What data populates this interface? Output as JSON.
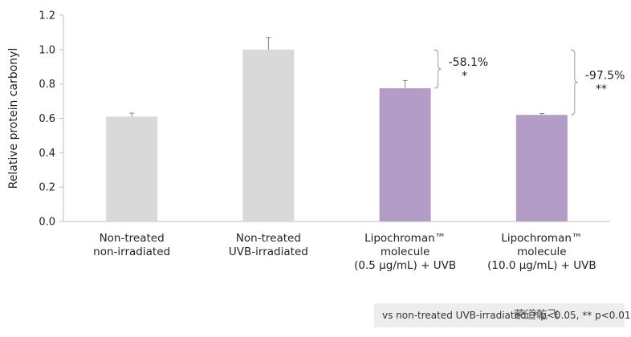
{
  "chart_data": {
    "type": "bar",
    "title": "",
    "xlabel": "",
    "ylabel": "Relative protein carbonyl",
    "ylim": [
      0,
      1.2
    ],
    "yticks": [
      "0.0",
      "0.2",
      "0.4",
      "0.6",
      "0.8",
      "1.0",
      "1.2"
    ],
    "grid": false,
    "categories": [
      [
        "Non-treated",
        "non-irradiated"
      ],
      [
        "Non-treated",
        "UVB-irradiated"
      ],
      [
        "Lipochroman™",
        "molecule",
        "(0.5 µg/mL) + UVB"
      ],
      [
        "Lipochroman™",
        "molecule",
        "(10.0 µg/mL) + UVB"
      ]
    ],
    "values": [
      0.61,
      1.0,
      0.775,
      0.62
    ],
    "errors": [
      0.02,
      0.07,
      0.045,
      0.008
    ],
    "colors": [
      "#d9d9d9",
      "#d9d9d9",
      "#b39cc6",
      "#b39cc6"
    ],
    "annotations": [
      {
        "bar": 2,
        "from_value": 1.0,
        "to_value": 0.775,
        "label": "-58.1%",
        "significance": "*"
      },
      {
        "bar": 3,
        "from_value": 1.0,
        "to_value": 0.62,
        "label": "-97.5%",
        "significance": "**"
      }
    ]
  },
  "footnote": {
    "text": "vs non-treated UVB-irradiated: * p<0.05, ** p<0.01"
  },
  "watermark": {
    "text": "荣道乾飞"
  },
  "colors": {
    "axis": "#bfbfbf",
    "bracket": "#9a9a9a",
    "error_bar": "#7f7f7f"
  }
}
